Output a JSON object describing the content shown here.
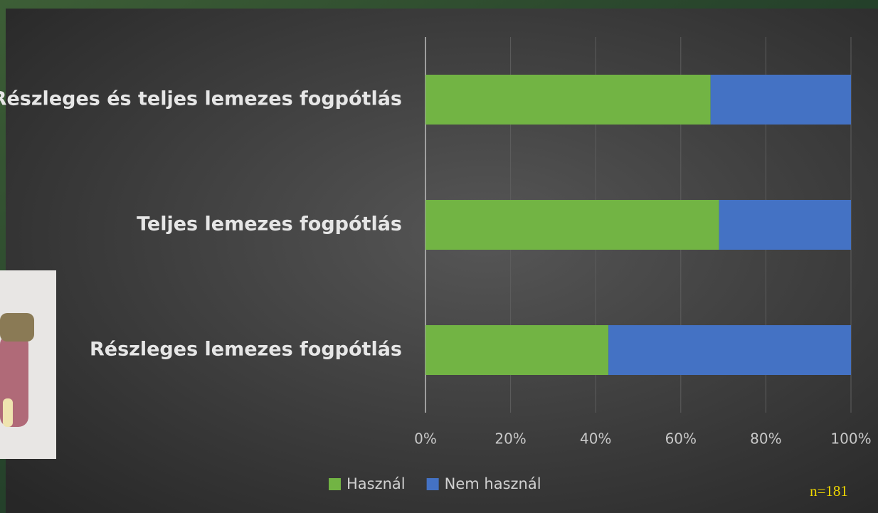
{
  "chart_data": {
    "type": "stacked-bar-horizontal",
    "categories": [
      "Részleges és teljes lemezes fogpótlás",
      "Teljes lemezes fogpótlás",
      "Részleges lemezes fogpótlás"
    ],
    "series": [
      {
        "name": "Használ",
        "color": "#72b444",
        "values": [
          67,
          69,
          43
        ]
      },
      {
        "name": "Nem használ",
        "color": "#4472c4",
        "values": [
          33,
          31,
          57
        ]
      }
    ],
    "xlim": [
      0,
      100
    ],
    "xticks": [
      {
        "value": 0,
        "label": "0%"
      },
      {
        "value": 20,
        "label": "20%"
      },
      {
        "value": 40,
        "label": "40%"
      },
      {
        "value": 60,
        "label": "60%"
      },
      {
        "value": 80,
        "label": "80%"
      },
      {
        "value": 100,
        "label": "100%"
      }
    ],
    "grid": true,
    "legend": "bottom",
    "annotation": "n=181"
  }
}
